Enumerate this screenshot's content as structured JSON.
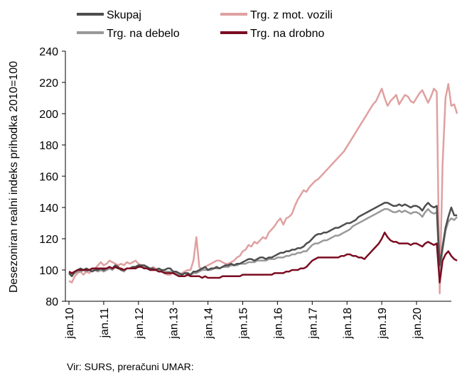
{
  "chart_data": {
    "type": "line",
    "title": "",
    "xlabel": "",
    "ylabel": "Desezoniran realni indeks prihodka 2010=100",
    "ylim": [
      80,
      240
    ],
    "yticks": [
      80,
      100,
      120,
      140,
      160,
      180,
      200,
      220,
      240
    ],
    "x_start": "jan.10",
    "x_tick_labels": [
      "jan.10",
      "jan.11",
      "jan.12",
      "jan.13",
      "jan.14",
      "jan.15",
      "jan.16",
      "jan.17",
      "jan.18",
      "jan.19",
      "jan.20"
    ],
    "grid": false,
    "legend_position": "top",
    "series": [
      {
        "name": "Skupaj",
        "color": "#4d4d4d",
        "values": [
          98,
          96,
          99,
          100,
          101,
          100,
          101,
          100,
          99,
          100,
          100,
          101,
          100,
          101,
          102,
          101,
          103,
          102,
          100,
          100,
          101,
          101,
          102,
          102,
          103,
          103,
          103,
          102,
          101,
          101,
          100,
          101,
          100,
          100,
          101,
          101,
          99,
          99,
          98,
          97,
          98,
          98,
          97,
          99,
          99,
          100,
          101,
          102,
          100,
          101,
          101,
          102,
          101,
          102,
          103,
          103,
          104,
          103,
          104,
          104,
          105,
          106,
          107,
          107,
          106,
          107,
          108,
          108,
          107,
          108,
          108,
          109,
          110,
          111,
          111,
          112,
          112,
          113,
          113,
          114,
          114,
          115,
          117,
          118,
          120,
          122,
          123,
          123,
          124,
          124,
          125,
          126,
          127,
          127,
          128,
          129,
          130,
          130,
          131,
          132,
          134,
          135,
          136,
          137,
          138,
          139,
          140,
          141,
          142,
          143,
          143,
          142,
          141,
          141,
          142,
          141,
          142,
          141,
          140,
          141,
          141,
          140,
          138,
          141,
          143,
          141,
          140,
          141,
          103,
          115,
          127,
          134,
          140,
          135,
          135
        ]
      },
      {
        "name": "Trg. z mot. vozili",
        "color": "#e0a0a0",
        "values": [
          93,
          92,
          96,
          98,
          99,
          97,
          99,
          98,
          100,
          101,
          103,
          105,
          103,
          104,
          106,
          105,
          104,
          103,
          104,
          103,
          105,
          104,
          105,
          106,
          104,
          103,
          102,
          101,
          100,
          102,
          101,
          100,
          99,
          98,
          97,
          97,
          99,
          98,
          97,
          98,
          99,
          100,
          100,
          106,
          121,
          102,
          100,
          102,
          103,
          104,
          105,
          106,
          106,
          105,
          104,
          104,
          105,
          106,
          108,
          109,
          112,
          113,
          116,
          115,
          118,
          117,
          119,
          121,
          120,
          124,
          126,
          128,
          131,
          133,
          129,
          133,
          134,
          136,
          141,
          145,
          148,
          151,
          150,
          153,
          155,
          157,
          158,
          160,
          162,
          164,
          166,
          168,
          170,
          172,
          174,
          176,
          179,
          182,
          185,
          188,
          191,
          194,
          197,
          200,
          203,
          206,
          208,
          212,
          216,
          210,
          205,
          208,
          210,
          212,
          206,
          209,
          212,
          211,
          208,
          207,
          210,
          213,
          215,
          211,
          207,
          211,
          216,
          214,
          85,
          168,
          210,
          219,
          205,
          206,
          200
        ]
      },
      {
        "name": "Trg. na debelo",
        "color": "#999999",
        "values": [
          98,
          97,
          98,
          99,
          99,
          100,
          99,
          100,
          100,
          100,
          99,
          100,
          99,
          100,
          101,
          100,
          102,
          101,
          100,
          99,
          101,
          101,
          102,
          102,
          103,
          102,
          102,
          101,
          100,
          100,
          100,
          100,
          99,
          99,
          99,
          99,
          98,
          98,
          97,
          97,
          98,
          97,
          97,
          98,
          98,
          99,
          100,
          100,
          100,
          100,
          101,
          101,
          101,
          102,
          102,
          102,
          103,
          103,
          103,
          104,
          104,
          104,
          105,
          105,
          105,
          106,
          106,
          106,
          106,
          107,
          107,
          107,
          108,
          108,
          108,
          109,
          109,
          110,
          110,
          111,
          111,
          112,
          112,
          114,
          116,
          117,
          117,
          118,
          119,
          119,
          120,
          121,
          122,
          122,
          123,
          124,
          125,
          126,
          128,
          129,
          130,
          131,
          132,
          133,
          134,
          135,
          136,
          137,
          138,
          139,
          139,
          138,
          137,
          137,
          138,
          137,
          138,
          137,
          136,
          137,
          137,
          136,
          134,
          137,
          139,
          137,
          136,
          137,
          96,
          113,
          125,
          131,
          133,
          132,
          134
        ]
      },
      {
        "name": "Trg. na drobno",
        "color": "#7b0c21",
        "values": [
          99,
          98,
          99,
          100,
          100,
          100,
          100,
          100,
          101,
          101,
          101,
          101,
          101,
          101,
          102,
          101,
          102,
          101,
          101,
          100,
          101,
          101,
          101,
          101,
          102,
          102,
          101,
          101,
          100,
          100,
          100,
          99,
          99,
          98,
          98,
          98,
          98,
          97,
          96,
          96,
          96,
          97,
          96,
          96,
          96,
          96,
          95,
          96,
          95,
          95,
          95,
          95,
          95,
          96,
          96,
          96,
          96,
          96,
          96,
          96,
          97,
          97,
          97,
          97,
          97,
          97,
          97,
          97,
          97,
          97,
          97,
          98,
          98,
          98,
          98,
          99,
          99,
          100,
          100,
          100,
          101,
          101,
          102,
          104,
          106,
          107,
          108,
          108,
          108,
          108,
          108,
          108,
          108,
          108,
          109,
          109,
          110,
          110,
          109,
          109,
          108,
          108,
          107,
          109,
          111,
          113,
          115,
          117,
          120,
          124,
          121,
          119,
          118,
          118,
          117,
          117,
          117,
          117,
          116,
          117,
          117,
          116,
          115,
          117,
          118,
          117,
          116,
          117,
          92,
          106,
          110,
          112,
          109,
          107,
          106
        ]
      }
    ]
  },
  "source_note": "Vir: SURS, preračuni UMAR:"
}
